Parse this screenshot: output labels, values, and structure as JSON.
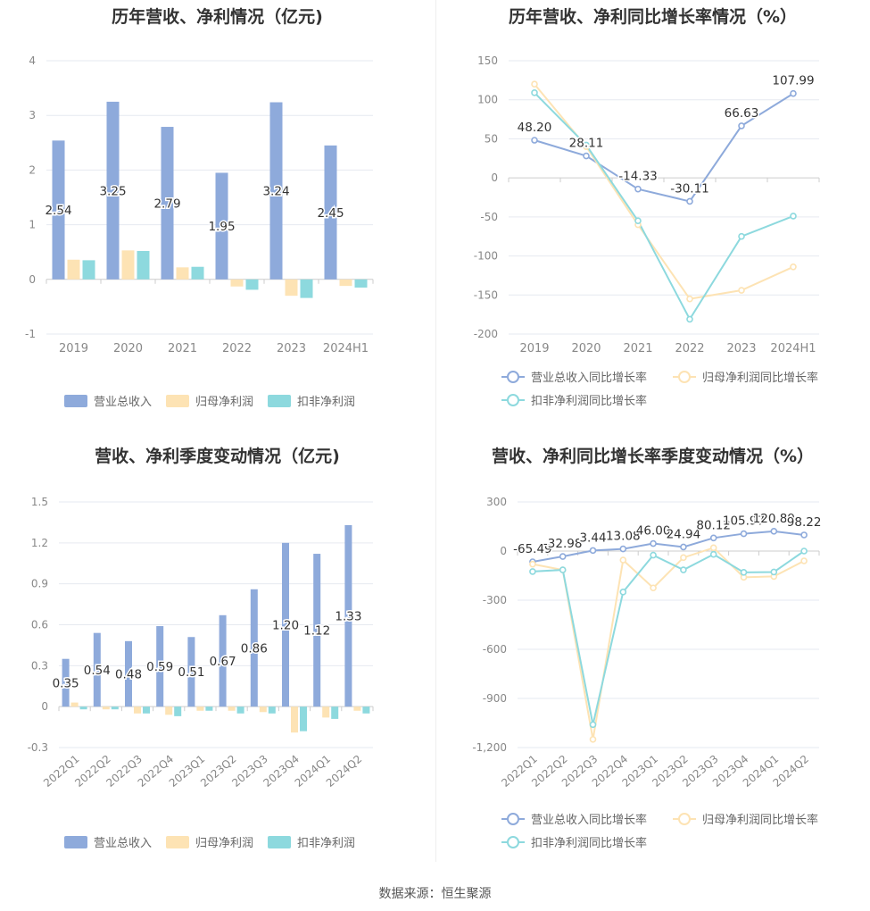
{
  "footer": {
    "source": "数据来源：恒生聚源"
  },
  "colors": {
    "revenue": "#8eaadb",
    "net_profit": "#fde3b4",
    "deducted_net_profit": "#8dd9de"
  },
  "chart_data": [
    {
      "id": "annual_amounts",
      "type": "bar",
      "title": "历年营收、净利情况（亿元)",
      "categories": [
        "2019",
        "2020",
        "2021",
        "2022",
        "2023",
        "2024H1"
      ],
      "ylim": [
        -1,
        4
      ],
      "yticks": [
        "4",
        "3",
        "2",
        "1",
        "0",
        "-1"
      ],
      "ytick_values": [
        4,
        3,
        2,
        1,
        0,
        -1
      ],
      "series": [
        {
          "name": "营业总收入",
          "color": "#8eaadb",
          "values": [
            2.54,
            3.25,
            2.79,
            1.95,
            3.24,
            2.45
          ],
          "labels": [
            "2.54",
            "3.25",
            "2.79",
            "1.95",
            "3.24",
            "2.45"
          ]
        },
        {
          "name": "归母净利润",
          "color": "#fde3b4",
          "values": [
            0.36,
            0.53,
            0.22,
            -0.13,
            -0.3,
            -0.12
          ]
        },
        {
          "name": "扣非净利润",
          "color": "#8dd9de",
          "values": [
            0.35,
            0.52,
            0.23,
            -0.19,
            -0.34,
            -0.15
          ]
        }
      ],
      "grid": true,
      "legend": "bottom"
    },
    {
      "id": "annual_growth",
      "type": "line",
      "title": "历年营收、净利同比增长率情况（%）",
      "categories": [
        "2019",
        "2020",
        "2021",
        "2022",
        "2023",
        "2024H1"
      ],
      "ylim": [
        -200,
        150
      ],
      "yticks": [
        "150",
        "100",
        "50",
        "0",
        "-50",
        "-100",
        "-150",
        "-200"
      ],
      "ytick_values": [
        150,
        100,
        50,
        0,
        -50,
        -100,
        -150,
        -200
      ],
      "series": [
        {
          "name": "营业总收入同比增长率",
          "color": "#8eaadb",
          "values": [
            48.2,
            28.11,
            -14.33,
            -30.11,
            66.63,
            107.99
          ],
          "labels": [
            "48.20",
            "28.11",
            "-14.33",
            "-30.11",
            "66.63",
            "107.99"
          ]
        },
        {
          "name": "归母净利润同比增长率",
          "color": "#fde3b4",
          "values": [
            120,
            40,
            -60,
            -155,
            -144,
            -114
          ]
        },
        {
          "name": "扣非净利润同比增长率",
          "color": "#8dd9de",
          "values": [
            109,
            42,
            -55,
            -181,
            -75,
            -49
          ]
        }
      ],
      "grid": true,
      "legend": "bottom"
    },
    {
      "id": "quarterly_amounts",
      "type": "bar",
      "title": "营收、净利季度变动情况（亿元)",
      "categories": [
        "2022Q1",
        "2022Q2",
        "2022Q3",
        "2022Q4",
        "2023Q1",
        "2023Q2",
        "2023Q3",
        "2023Q4",
        "2024Q1",
        "2024Q2"
      ],
      "ylim": [
        -0.3,
        1.5
      ],
      "yticks": [
        "1.5",
        "1.2",
        "0.9",
        "0.6",
        "0.3",
        "0",
        "-0.3"
      ],
      "ytick_values": [
        1.5,
        1.2,
        0.9,
        0.6,
        0.3,
        0,
        -0.3
      ],
      "series": [
        {
          "name": "营业总收入",
          "color": "#8eaadb",
          "values": [
            0.35,
            0.54,
            0.48,
            0.59,
            0.51,
            0.67,
            0.86,
            1.2,
            1.12,
            1.33
          ],
          "labels": [
            "0.35",
            "0.54",
            "0.48",
            "0.59",
            "0.51",
            "0.67",
            "0.86",
            "1.20",
            "1.12",
            "1.33"
          ]
        },
        {
          "name": "归母净利润",
          "color": "#fde3b4",
          "values": [
            0.03,
            -0.02,
            -0.05,
            -0.06,
            -0.03,
            -0.03,
            -0.04,
            -0.19,
            -0.08,
            -0.03
          ]
        },
        {
          "name": "扣非净利润",
          "color": "#8dd9de",
          "values": [
            -0.02,
            -0.02,
            -0.05,
            -0.07,
            -0.03,
            -0.05,
            -0.05,
            -0.18,
            -0.09,
            -0.05
          ]
        }
      ],
      "grid": true,
      "legend": "bottom"
    },
    {
      "id": "quarterly_growth",
      "type": "line",
      "title": "营收、净利同比增长率季度变动情况（%）",
      "categories": [
        "2022Q1",
        "2022Q2",
        "2022Q3",
        "2022Q4",
        "2023Q1",
        "2023Q2",
        "2023Q3",
        "2023Q4",
        "2024Q1",
        "2024Q2"
      ],
      "ylim": [
        -1200,
        300
      ],
      "yticks": [
        "300",
        "0",
        "-300",
        "-600",
        "-900",
        "-1,200"
      ],
      "ytick_values": [
        300,
        0,
        -300,
        -600,
        -900,
        -1200
      ],
      "series": [
        {
          "name": "营业总收入同比增长率",
          "color": "#8eaadb",
          "values": [
            -65.49,
            -32.98,
            3.44,
            13.08,
            46.0,
            24.94,
            80.12,
            105.97,
            120.89,
            98.22
          ],
          "labels": [
            "-65.49",
            "-32.98",
            "3.44",
            "13.08",
            "46.00",
            "24.94",
            "80.12",
            "105.97",
            "120.89",
            "98.22"
          ]
        },
        {
          "name": "归母净利润同比增长率",
          "color": "#fde3b4",
          "values": [
            -80,
            -115,
            -1150,
            -55,
            -225,
            -40,
            20,
            -160,
            -155,
            -60
          ]
        },
        {
          "name": "扣非净利润同比增长率",
          "color": "#8dd9de",
          "values": [
            -125,
            -115,
            -1060,
            -250,
            -25,
            -115,
            -20,
            -130,
            -128,
            0
          ]
        }
      ],
      "grid": true,
      "legend": "bottom"
    }
  ]
}
